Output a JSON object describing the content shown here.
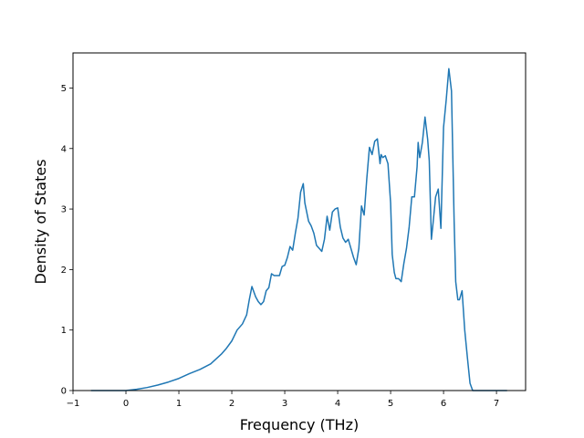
{
  "chart_data": {
    "type": "line",
    "title": "",
    "xlabel": "Frequency (THz)",
    "ylabel": "Density of States",
    "xlim": [
      -1.0,
      7.55
    ],
    "ylim": [
      0,
      5.58
    ],
    "xticks": [
      -1,
      0,
      1,
      2,
      3,
      4,
      5,
      6,
      7
    ],
    "xtick_labels": [
      "−1",
      "0",
      "1",
      "2",
      "3",
      "4",
      "5",
      "6",
      "7"
    ],
    "yticks": [
      0,
      1,
      2,
      3,
      4,
      5
    ],
    "ytick_labels": [
      "0",
      "1",
      "2",
      "3",
      "4",
      "5"
    ],
    "grid": false,
    "series": [
      {
        "color": "#1f77b4",
        "x": [
          -0.66,
          0.0,
          0.2,
          0.4,
          0.6,
          0.8,
          1.0,
          1.2,
          1.4,
          1.6,
          1.8,
          1.9,
          2.0,
          2.1,
          2.2,
          2.28,
          2.33,
          2.38,
          2.45,
          2.5,
          2.55,
          2.6,
          2.65,
          2.7,
          2.75,
          2.8,
          2.9,
          2.95,
          3.0,
          3.05,
          3.1,
          3.15,
          3.2,
          3.25,
          3.3,
          3.35,
          3.38,
          3.45,
          3.5,
          3.55,
          3.6,
          3.65,
          3.7,
          3.75,
          3.8,
          3.85,
          3.9,
          3.95,
          4.0,
          4.05,
          4.1,
          4.15,
          4.2,
          4.25,
          4.3,
          4.35,
          4.4,
          4.45,
          4.5,
          4.55,
          4.6,
          4.65,
          4.7,
          4.75,
          4.8,
          4.82,
          4.85,
          4.9,
          4.95,
          5.0,
          5.03,
          5.07,
          5.1,
          5.15,
          5.2,
          5.25,
          5.3,
          5.35,
          5.4,
          5.45,
          5.5,
          5.52,
          5.55,
          5.6,
          5.65,
          5.7,
          5.73,
          5.77,
          5.8,
          5.85,
          5.9,
          5.95,
          6.0,
          6.05,
          6.1,
          6.15,
          6.2,
          6.23,
          6.27,
          6.3,
          6.35,
          6.4,
          6.45,
          6.5,
          6.55,
          7.2
        ],
        "y": [
          0.0,
          0.0,
          0.02,
          0.05,
          0.09,
          0.14,
          0.2,
          0.28,
          0.35,
          0.44,
          0.6,
          0.7,
          0.82,
          1.0,
          1.1,
          1.25,
          1.5,
          1.72,
          1.55,
          1.47,
          1.42,
          1.47,
          1.65,
          1.7,
          1.93,
          1.9,
          1.9,
          2.05,
          2.07,
          2.2,
          2.38,
          2.32,
          2.6,
          2.85,
          3.28,
          3.42,
          3.1,
          2.8,
          2.72,
          2.6,
          2.4,
          2.35,
          2.3,
          2.5,
          2.88,
          2.65,
          2.95,
          3.0,
          3.02,
          2.7,
          2.52,
          2.45,
          2.5,
          2.35,
          2.2,
          2.08,
          2.35,
          3.05,
          2.9,
          3.5,
          4.02,
          3.9,
          4.12,
          4.16,
          3.75,
          3.9,
          3.85,
          3.88,
          3.75,
          3.1,
          2.25,
          1.95,
          1.85,
          1.85,
          1.8,
          2.1,
          2.35,
          2.7,
          3.2,
          3.2,
          3.7,
          4.1,
          3.85,
          4.1,
          4.52,
          4.15,
          3.8,
          2.5,
          2.75,
          3.2,
          3.33,
          2.68,
          4.35,
          4.8,
          5.32,
          4.95,
          2.8,
          1.8,
          1.5,
          1.5,
          1.65,
          1.0,
          0.55,
          0.12,
          0.0,
          0.0
        ]
      }
    ]
  }
}
